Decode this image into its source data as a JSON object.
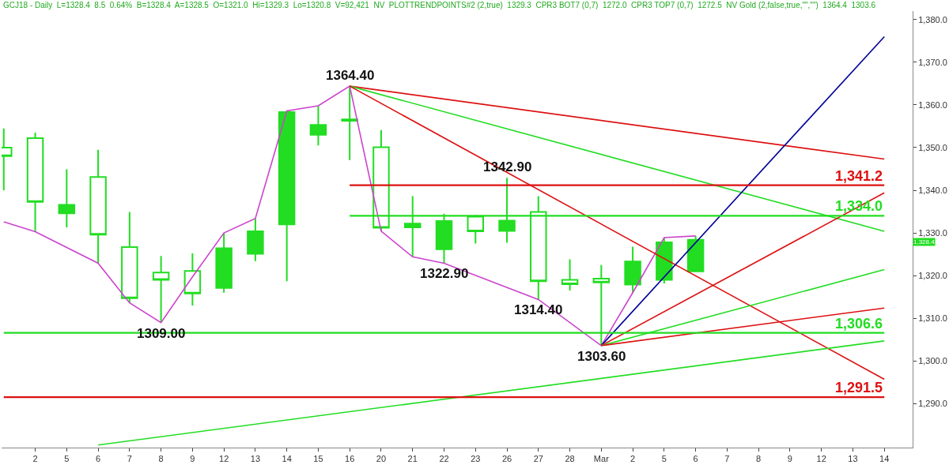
{
  "chart_data": {
    "type": "candlestick",
    "title": "GCJ18 - Daily  L=1328.4  8.5  0.64%  B=1328.4  A=1328.5  O=1321.0  Hi=1329.3  Lo=1320.8  V=92,421  NV  PLOTTRENDPOINTS#2 (2,true)  1329.3  CPR3 BOT7 (0,7)  1272.0  CPR3 TOP7 (0,7)  1272.5  NV Gold (2,false,true,\"\",\"\")  1364.4  1303.6",
    "categories": [
      null,
      "2",
      "5",
      "6",
      "7",
      "8",
      "9",
      "12",
      "13",
      "14",
      "15",
      "16",
      "20",
      "21",
      "22",
      "23",
      "26",
      "27",
      "28",
      "Mar",
      "2",
      "5",
      "6",
      "7",
      "8",
      "9",
      "12",
      "13",
      "14"
    ],
    "color": "#22dd22",
    "ohlc": [
      [
        1350.0,
        1354.5,
        1340.0,
        1348.0
      ],
      [
        1352.2,
        1353.5,
        1330.3,
        1337.3
      ],
      [
        1334.6,
        1344.9,
        1331.3,
        1336.6
      ],
      [
        1343.1,
        1349.5,
        1322.9,
        1329.6
      ],
      [
        1326.7,
        1334.9,
        1313.6,
        1314.7
      ],
      [
        1320.7,
        1324.6,
        1309.0,
        1319.0
      ],
      [
        1321.1,
        1325.2,
        1313.0,
        1315.8
      ],
      [
        1317.1,
        1330.0,
        1316.0,
        1326.4
      ],
      [
        1325.1,
        1333.4,
        1323.4,
        1330.4
      ],
      [
        1332.0,
        1358.6,
        1318.7,
        1358.3
      ],
      [
        1353.0,
        1359.8,
        1350.5,
        1355.3
      ],
      [
        1356.6,
        1364.4,
        1347.1,
        1356.3
      ],
      [
        1350.1,
        1354.1,
        1330.4,
        1331.2
      ],
      [
        1331.3,
        1338.6,
        1324.4,
        1332.2
      ],
      [
        1326.2,
        1334.5,
        1322.9,
        1332.8
      ],
      [
        1333.8,
        1334.2,
        1327.5,
        1330.4
      ],
      [
        1330.5,
        1342.9,
        1327.7,
        1332.9
      ],
      [
        1334.9,
        1338.6,
        1314.4,
        1318.7
      ],
      [
        1319.0,
        1323.8,
        1316.5,
        1318.0
      ],
      [
        1319.3,
        1322.5,
        1303.6,
        1318.4
      ],
      [
        1317.9,
        1326.8,
        1316.0,
        1323.3
      ],
      [
        1319.0,
        1328.9,
        1318.2,
        1327.8
      ],
      [
        1321.0,
        1329.3,
        1320.8,
        1328.4
      ],
      null,
      null,
      null,
      null,
      null,
      null
    ],
    "series": [
      {
        "type": "line",
        "color": "#cc44cc",
        "values": [
          1332.6,
          1330.3,
          null,
          1322.9,
          1313.6,
          1309.0,
          1319.7,
          1330.0,
          1333.4,
          1358.6,
          1359.8,
          1364.4,
          1330.4,
          1324.4,
          1322.9,
          null,
          null,
          1314.4,
          null,
          1303.6,
          1316.0,
          1328.9,
          1329.3,
          null,
          null,
          null,
          null,
          null,
          null
        ]
      },
      {
        "type": "line",
        "color": "#dd1111",
        "values": [
          null,
          null,
          null,
          null,
          null,
          null,
          null,
          null,
          null,
          null,
          null,
          1364.4,
          null,
          null,
          null,
          null,
          null,
          null,
          null,
          null,
          null,
          null,
          null,
          null,
          null,
          null,
          null,
          null,
          1347.3
        ]
      },
      {
        "type": "line",
        "color": "#22dd22",
        "values": [
          null,
          null,
          null,
          null,
          null,
          null,
          null,
          null,
          null,
          null,
          null,
          1364.4,
          null,
          null,
          null,
          null,
          null,
          null,
          null,
          null,
          null,
          null,
          null,
          null,
          null,
          null,
          null,
          null,
          1330.4
        ]
      },
      {
        "type": "line",
        "color": "#dd1111",
        "values": [
          null,
          null,
          null,
          null,
          null,
          null,
          null,
          null,
          null,
          null,
          null,
          1364.4,
          null,
          null,
          null,
          null,
          null,
          null,
          null,
          null,
          null,
          null,
          null,
          null,
          null,
          null,
          null,
          null,
          1295.7
        ]
      },
      {
        "type": "line",
        "color": "#000099",
        "values": [
          null,
          null,
          null,
          null,
          null,
          null,
          null,
          null,
          null,
          null,
          null,
          null,
          null,
          null,
          null,
          null,
          null,
          null,
          null,
          1303.6,
          null,
          null,
          null,
          null,
          null,
          null,
          null,
          null,
          1376.0
        ]
      },
      {
        "type": "line",
        "color": "#dd1111",
        "values": [
          null,
          null,
          null,
          null,
          null,
          null,
          null,
          null,
          null,
          null,
          null,
          null,
          null,
          null,
          null,
          null,
          null,
          null,
          null,
          1303.6,
          null,
          null,
          null,
          null,
          null,
          null,
          null,
          null,
          1339.4
        ]
      },
      {
        "type": "line",
        "color": "#22dd22",
        "values": [
          null,
          null,
          null,
          null,
          null,
          null,
          null,
          null,
          null,
          null,
          null,
          null,
          null,
          null,
          null,
          null,
          null,
          null,
          null,
          1303.6,
          null,
          null,
          null,
          null,
          null,
          null,
          null,
          null,
          1321.4
        ]
      },
      {
        "type": "line",
        "color": "#dd1111",
        "values": [
          null,
          null,
          null,
          null,
          null,
          null,
          null,
          null,
          null,
          null,
          null,
          null,
          null,
          null,
          null,
          null,
          null,
          null,
          null,
          1303.6,
          null,
          null,
          null,
          null,
          null,
          null,
          null,
          null,
          1312.4
        ]
      },
      {
        "type": "line",
        "color": "#22dd22",
        "values": [
          null,
          null,
          null,
          1280.3,
          null,
          null,
          null,
          null,
          null,
          null,
          null,
          null,
          null,
          null,
          null,
          null,
          null,
          null,
          null,
          null,
          null,
          null,
          null,
          null,
          null,
          null,
          null,
          null,
          1304.7
        ]
      },
      {
        "type": "line",
        "name": "1,341.2",
        "color": "#dd1111",
        "values": [
          null,
          null,
          null,
          null,
          null,
          null,
          null,
          null,
          null,
          null,
          null,
          1341.2,
          null,
          null,
          null,
          null,
          null,
          null,
          null,
          null,
          null,
          null,
          null,
          null,
          null,
          null,
          null,
          null,
          1341.2
        ]
      },
      {
        "type": "line",
        "name": "1,334.0",
        "color": "#22dd22",
        "values": [
          null,
          null,
          null,
          null,
          null,
          null,
          null,
          null,
          null,
          null,
          null,
          1334.0,
          null,
          null,
          null,
          null,
          null,
          null,
          null,
          null,
          null,
          null,
          null,
          null,
          null,
          null,
          null,
          null,
          1334.0
        ]
      },
      {
        "type": "line",
        "name": "1,306.6",
        "color": "#22dd22",
        "values": [
          1306.6,
          null,
          null,
          null,
          null,
          null,
          null,
          null,
          null,
          null,
          null,
          null,
          null,
          null,
          null,
          null,
          null,
          null,
          null,
          null,
          null,
          null,
          null,
          null,
          null,
          null,
          null,
          null,
          1306.6
        ]
      },
      {
        "type": "line",
        "name": "1,291.5",
        "color": "#dd1111",
        "values": [
          1291.5,
          null,
          null,
          null,
          null,
          null,
          null,
          null,
          null,
          null,
          null,
          null,
          null,
          null,
          null,
          null,
          null,
          null,
          null,
          null,
          null,
          null,
          null,
          null,
          null,
          null,
          null,
          null,
          1291.5
        ]
      }
    ],
    "annotations": [
      {
        "text": "1364.40",
        "x": "16",
        "y": 1364.4
      },
      {
        "text": "1309.00",
        "x": "8",
        "y": 1309.0
      },
      {
        "text": "1322.90",
        "x": "22",
        "y": 1322.9
      },
      {
        "text": "1342.90",
        "x": "26",
        "y": 1342.9
      },
      {
        "text": "1314.40",
        "x": "27",
        "y": 1314.4
      },
      {
        "text": "1303.60",
        "x": "Mar",
        "y": 1303.6
      },
      "1,328.4"
    ],
    "ylim": [
      1279.7,
      1382.0
    ],
    "yticks": [
      {
        "value": 1290,
        "label": "1,290.0"
      },
      {
        "value": 1300,
        "label": "1,300.0"
      },
      {
        "value": 1310,
        "label": "1,310.0"
      },
      {
        "value": 1320,
        "label": "1,320.0"
      },
      {
        "value": 1330,
        "label": "1,330.0"
      },
      {
        "value": 1340,
        "label": "1,340.0"
      },
      {
        "value": 1350,
        "label": "1,350.0"
      },
      {
        "value": 1360,
        "label": "1,360.0"
      },
      {
        "value": 1370,
        "label": "1,370.0"
      },
      {
        "value": 1380,
        "label": "1,380.0"
      }
    ],
    "legend": false
  }
}
